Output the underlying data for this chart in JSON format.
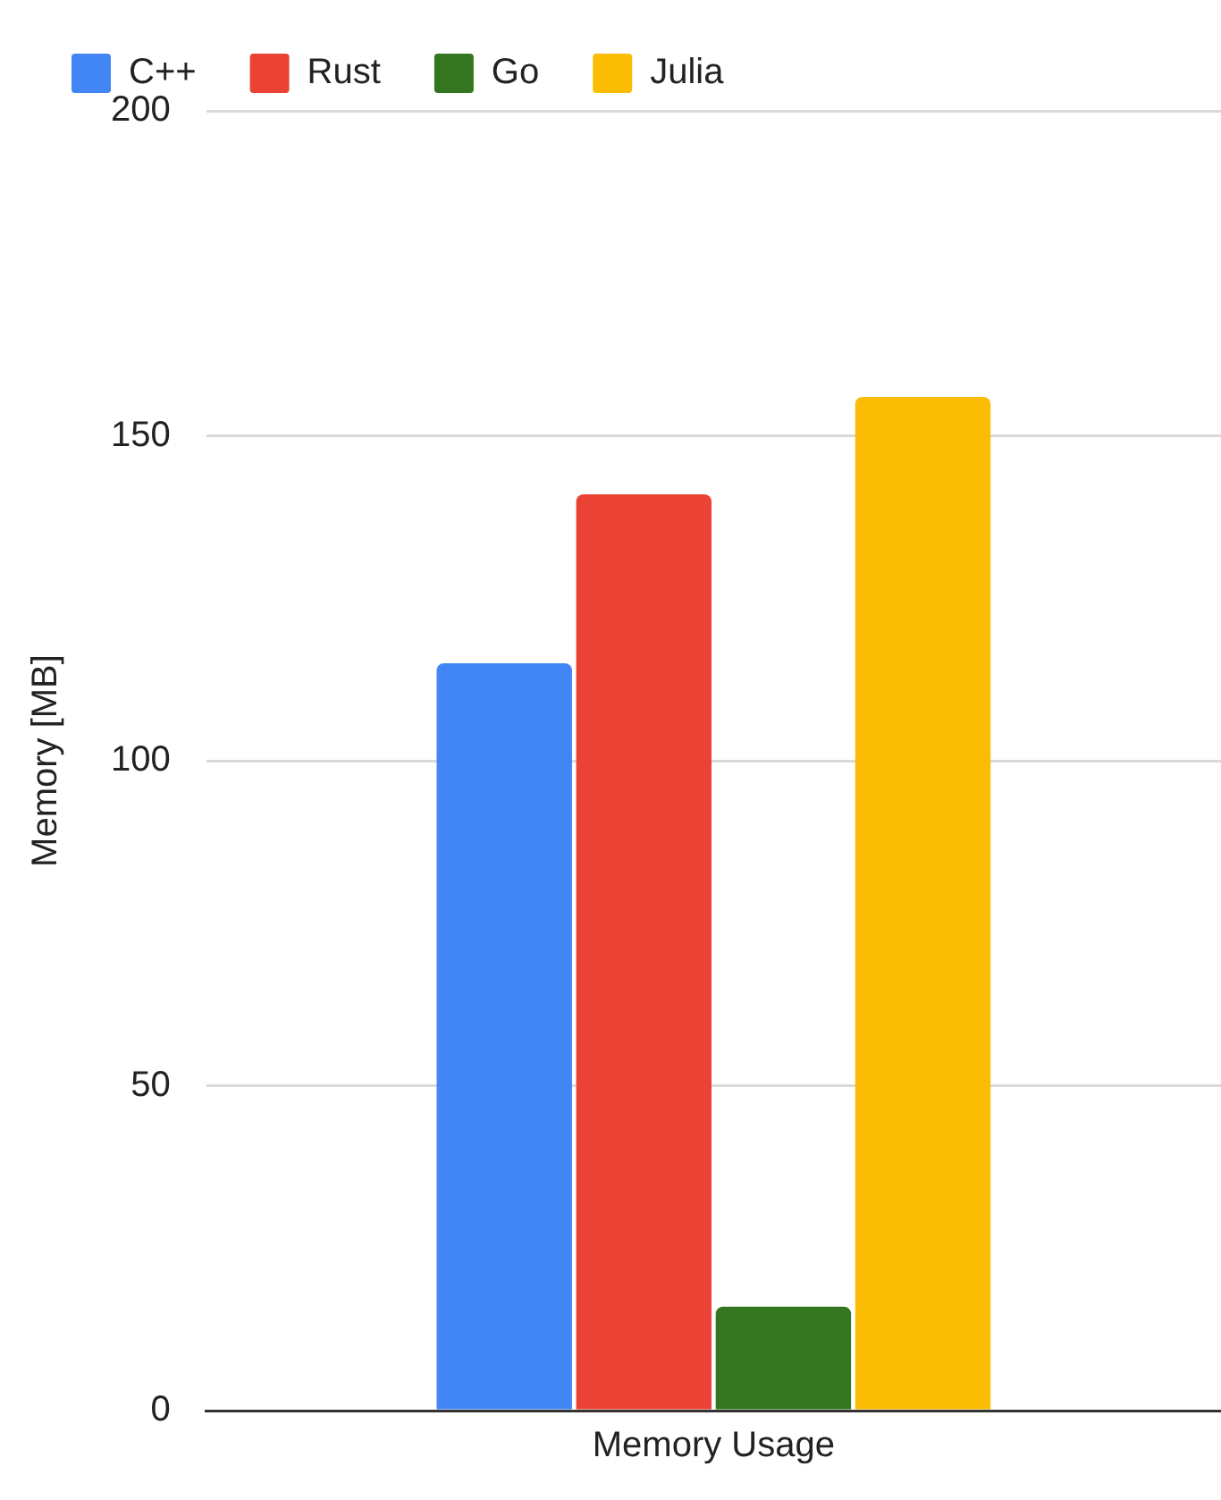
{
  "chart_data": {
    "type": "bar",
    "ylabel": "Memory [MB]",
    "categories": [
      "Memory Usage"
    ],
    "series": [
      {
        "name": "C++",
        "color": "#4285f4",
        "values": [
          115
        ]
      },
      {
        "name": "Rust",
        "color": "#ea4335",
        "values": [
          141
        ]
      },
      {
        "name": "Go",
        "color": "#34761f",
        "values": [
          16
        ]
      },
      {
        "name": "Julia",
        "color": "#fbbc04",
        "values": [
          156
        ]
      }
    ],
    "ylim": [
      0,
      200
    ],
    "yticks": [
      0,
      50,
      100,
      150,
      200
    ],
    "grid": "y",
    "legend": "top left"
  }
}
